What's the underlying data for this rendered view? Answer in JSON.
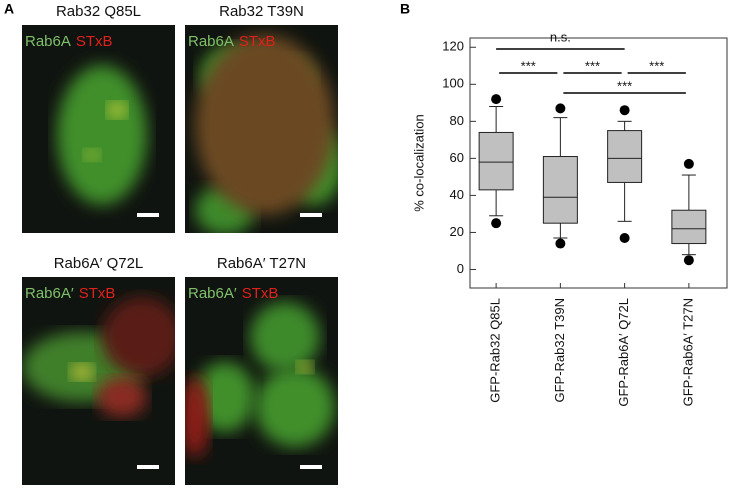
{
  "panels": {
    "a": {
      "label": "A",
      "images": [
        {
          "title": "Rab32 Q85L",
          "channels": [
            "Rab6A",
            "STxB"
          ]
        },
        {
          "title": "Rab32 T39N",
          "channels": [
            "Rab6A",
            "STxB"
          ]
        },
        {
          "title": "Rab6A′ Q72L",
          "channels": [
            "Rab6A′",
            "STxB"
          ]
        },
        {
          "title": "Rab6A′ T27N",
          "channels": [
            "Rab6A′",
            "STxB"
          ]
        }
      ]
    },
    "b": {
      "label": "B"
    }
  },
  "chart_data": {
    "type": "box",
    "ylabel": "% co-localization",
    "categories": [
      "GFP-Rab32 Q85L",
      "GFP-Rab32 T39N",
      "GFP-Rab6A′ Q72L",
      "GFP-Rab6A′ T27N"
    ],
    "whisker_low": [
      29,
      17,
      26,
      8
    ],
    "q1": [
      43,
      25,
      47,
      14
    ],
    "median": [
      58,
      39,
      60,
      22
    ],
    "q3": [
      74,
      61,
      75,
      32
    ],
    "whisker_high": [
      88,
      82,
      80,
      51
    ],
    "outliers": [
      [
        92,
        25
      ],
      [
        87,
        14
      ],
      [
        86,
        17
      ],
      [
        57,
        5
      ]
    ],
    "color": "#c0c0c0",
    "ylim": [
      -10,
      125
    ],
    "yticks": [
      0,
      20,
      40,
      60,
      80,
      100,
      120
    ],
    "annotations": [
      "n.s.",
      "***",
      "***",
      "***",
      "***"
    ]
  }
}
